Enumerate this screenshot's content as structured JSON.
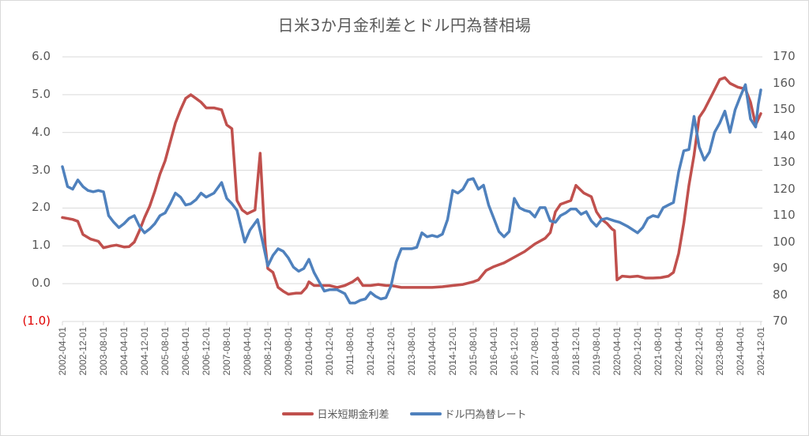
{
  "chart_data": {
    "type": "line",
    "title": "日米3か月金利差とドル円為替相場",
    "xlabel": "",
    "ylabel_left": "",
    "ylabel_right": "",
    "ylim_left": [
      -1.0,
      6.0
    ],
    "ylim_right": [
      70,
      170
    ],
    "grid": true,
    "legend_position": "bottom",
    "left_ticks": [
      "6.0",
      "5.0",
      "4.0",
      "3.0",
      "2.0",
      "1.0",
      "0.0",
      "(1.0)"
    ],
    "right_ticks": [
      "170",
      "160",
      "150",
      "140",
      "130",
      "120",
      "110",
      "100",
      "90",
      "80",
      "70"
    ],
    "x_tick_labels": [
      "2002-04-01",
      "2002-12-01",
      "2003-08-01",
      "2004-04-01",
      "2004-12-01",
      "2005-08-01",
      "2006-04-01",
      "2006-12-01",
      "2007-08-01",
      "2008-04-01",
      "2008-12-01",
      "2009-08-01",
      "2010-04-01",
      "2010-12-01",
      "2011-08-01",
      "2012-04-01",
      "2012-12-01",
      "2013-08-01",
      "2014-04-01",
      "2014-12-01",
      "2015-08-01",
      "2016-04-01",
      "2016-12-01",
      "2017-08-01",
      "2018-04-01",
      "2018-12-01",
      "2019-08-01",
      "2020-04-01",
      "2020-12-01",
      "2021-08-01",
      "2022-04-01",
      "2022-12-01",
      "2023-08-01",
      "2024-04-01",
      "2024-12-01"
    ],
    "series": [
      {
        "name": "日米短期金利差",
        "axis": "left",
        "color": "#c0504d",
        "points": [
          [
            "2002-04",
            1.75
          ],
          [
            "2002-08",
            1.7
          ],
          [
            "2002-10",
            1.65
          ],
          [
            "2002-12",
            1.3
          ],
          [
            "2003-03",
            1.18
          ],
          [
            "2003-06",
            1.12
          ],
          [
            "2003-08",
            0.95
          ],
          [
            "2003-11",
            1.0
          ],
          [
            "2004-01",
            1.02
          ],
          [
            "2004-04",
            0.97
          ],
          [
            "2004-06",
            0.98
          ],
          [
            "2004-08",
            1.1
          ],
          [
            "2004-10",
            1.4
          ],
          [
            "2004-12",
            1.75
          ],
          [
            "2005-02",
            2.05
          ],
          [
            "2005-04",
            2.45
          ],
          [
            "2005-06",
            2.9
          ],
          [
            "2005-08",
            3.25
          ],
          [
            "2005-10",
            3.75
          ],
          [
            "2005-12",
            4.25
          ],
          [
            "2006-02",
            4.6
          ],
          [
            "2006-04",
            4.9
          ],
          [
            "2006-06",
            5.0
          ],
          [
            "2006-08",
            4.9
          ],
          [
            "2006-10",
            4.8
          ],
          [
            "2006-12",
            4.65
          ],
          [
            "2007-03",
            4.65
          ],
          [
            "2007-06",
            4.6
          ],
          [
            "2007-08",
            4.2
          ],
          [
            "2007-10",
            4.1
          ],
          [
            "2007-12",
            2.2
          ],
          [
            "2008-02",
            1.95
          ],
          [
            "2008-04",
            1.85
          ],
          [
            "2008-07",
            1.95
          ],
          [
            "2008-09",
            3.45
          ],
          [
            "2008-11",
            1.0
          ],
          [
            "2008-12",
            0.4
          ],
          [
            "2009-02",
            0.3
          ],
          [
            "2009-04",
            -0.1
          ],
          [
            "2009-06",
            -0.2
          ],
          [
            "2009-08",
            -0.28
          ],
          [
            "2009-11",
            -0.25
          ],
          [
            "2010-01",
            -0.25
          ],
          [
            "2010-03",
            -0.1
          ],
          [
            "2010-04",
            0.05
          ],
          [
            "2010-06",
            -0.05
          ],
          [
            "2010-09",
            -0.05
          ],
          [
            "2010-12",
            -0.05
          ],
          [
            "2011-03",
            -0.1
          ],
          [
            "2011-06",
            -0.05
          ],
          [
            "2011-09",
            0.05
          ],
          [
            "2011-11",
            0.15
          ],
          [
            "2012-01",
            -0.05
          ],
          [
            "2012-04",
            -0.05
          ],
          [
            "2012-07",
            -0.02
          ],
          [
            "2012-10",
            -0.05
          ],
          [
            "2012-12",
            -0.05
          ],
          [
            "2013-04",
            -0.1
          ],
          [
            "2013-08",
            -0.1
          ],
          [
            "2013-12",
            -0.1
          ],
          [
            "2014-04",
            -0.1
          ],
          [
            "2014-08",
            -0.08
          ],
          [
            "2014-12",
            -0.05
          ],
          [
            "2015-04",
            -0.02
          ],
          [
            "2015-08",
            0.05
          ],
          [
            "2015-10",
            0.1
          ],
          [
            "2016-01",
            0.35
          ],
          [
            "2016-04",
            0.45
          ],
          [
            "2016-08",
            0.55
          ],
          [
            "2016-12",
            0.7
          ],
          [
            "2017-04",
            0.85
          ],
          [
            "2017-08",
            1.05
          ],
          [
            "2017-12",
            1.2
          ],
          [
            "2018-02",
            1.35
          ],
          [
            "2018-04",
            1.9
          ],
          [
            "2018-06",
            2.1
          ],
          [
            "2018-10",
            2.2
          ],
          [
            "2018-12",
            2.6
          ],
          [
            "2019-03",
            2.4
          ],
          [
            "2019-06",
            2.3
          ],
          [
            "2019-08",
            1.9
          ],
          [
            "2019-10",
            1.7
          ],
          [
            "2019-12",
            1.6
          ],
          [
            "2020-02",
            1.45
          ],
          [
            "2020-03",
            1.4
          ],
          [
            "2020-04",
            0.1
          ],
          [
            "2020-06",
            0.2
          ],
          [
            "2020-09",
            0.18
          ],
          [
            "2020-12",
            0.2
          ],
          [
            "2021-03",
            0.15
          ],
          [
            "2021-06",
            0.15
          ],
          [
            "2021-09",
            0.16
          ],
          [
            "2021-12",
            0.2
          ],
          [
            "2022-02",
            0.3
          ],
          [
            "2022-04",
            0.8
          ],
          [
            "2022-06",
            1.6
          ],
          [
            "2022-08",
            2.6
          ],
          [
            "2022-10",
            3.4
          ],
          [
            "2022-12",
            4.4
          ],
          [
            "2023-02",
            4.6
          ],
          [
            "2023-05",
            5.0
          ],
          [
            "2023-08",
            5.4
          ],
          [
            "2023-10",
            5.45
          ],
          [
            "2023-12",
            5.3
          ],
          [
            "2024-03",
            5.2
          ],
          [
            "2024-06",
            5.15
          ],
          [
            "2024-08",
            4.8
          ],
          [
            "2024-10",
            4.2
          ],
          [
            "2024-12",
            4.5
          ]
        ]
      },
      {
        "name": "ドル円為替レート",
        "axis": "right",
        "color": "#4f81bd",
        "points": [
          [
            "2002-04",
            128.5
          ],
          [
            "2002-06",
            121.0
          ],
          [
            "2002-08",
            120.0
          ],
          [
            "2002-10",
            123.5
          ],
          [
            "2002-12",
            121.0
          ],
          [
            "2003-02",
            119.5
          ],
          [
            "2003-04",
            119.0
          ],
          [
            "2003-06",
            119.5
          ],
          [
            "2003-08",
            119.0
          ],
          [
            "2003-10",
            110.0
          ],
          [
            "2003-12",
            107.5
          ],
          [
            "2004-02",
            105.5
          ],
          [
            "2004-04",
            107.0
          ],
          [
            "2004-06",
            109.0
          ],
          [
            "2004-08",
            110.0
          ],
          [
            "2004-10",
            106.0
          ],
          [
            "2004-12",
            103.5
          ],
          [
            "2005-02",
            105.0
          ],
          [
            "2005-04",
            107.0
          ],
          [
            "2005-06",
            110.0
          ],
          [
            "2005-08",
            111.0
          ],
          [
            "2005-10",
            114.5
          ],
          [
            "2005-12",
            118.5
          ],
          [
            "2006-02",
            117.0
          ],
          [
            "2006-04",
            114.0
          ],
          [
            "2006-06",
            114.5
          ],
          [
            "2006-08",
            116.0
          ],
          [
            "2006-10",
            118.5
          ],
          [
            "2006-12",
            117.0
          ],
          [
            "2007-03",
            118.5
          ],
          [
            "2007-06",
            122.5
          ],
          [
            "2007-08",
            116.5
          ],
          [
            "2007-10",
            114.5
          ],
          [
            "2007-12",
            112.0
          ],
          [
            "2008-03",
            100.0
          ],
          [
            "2008-05",
            104.5
          ],
          [
            "2008-08",
            108.5
          ],
          [
            "2008-10",
            100.0
          ],
          [
            "2008-12",
            91.0
          ],
          [
            "2009-02",
            95.0
          ],
          [
            "2009-04",
            97.5
          ],
          [
            "2009-06",
            96.5
          ],
          [
            "2009-08",
            94.0
          ],
          [
            "2009-10",
            90.5
          ],
          [
            "2009-12",
            89.0
          ],
          [
            "2010-02",
            90.0
          ],
          [
            "2010-04",
            93.5
          ],
          [
            "2010-06",
            88.5
          ],
          [
            "2010-08",
            85.0
          ],
          [
            "2010-10",
            81.5
          ],
          [
            "2010-12",
            82.0
          ],
          [
            "2011-03",
            82.0
          ],
          [
            "2011-06",
            80.5
          ],
          [
            "2011-08",
            77.0
          ],
          [
            "2011-10",
            77.0
          ],
          [
            "2011-12",
            78.0
          ],
          [
            "2012-02",
            78.5
          ],
          [
            "2012-04",
            81.0
          ],
          [
            "2012-06",
            79.5
          ],
          [
            "2012-08",
            78.5
          ],
          [
            "2012-10",
            79.0
          ],
          [
            "2012-12",
            83.5
          ],
          [
            "2013-02",
            92.5
          ],
          [
            "2013-04",
            97.5
          ],
          [
            "2013-06",
            97.5
          ],
          [
            "2013-08",
            97.5
          ],
          [
            "2013-10",
            98.0
          ],
          [
            "2013-12",
            103.5
          ],
          [
            "2014-02",
            102.0
          ],
          [
            "2014-04",
            102.5
          ],
          [
            "2014-06",
            102.0
          ],
          [
            "2014-08",
            103.0
          ],
          [
            "2014-10",
            108.5
          ],
          [
            "2014-12",
            119.5
          ],
          [
            "2015-02",
            118.5
          ],
          [
            "2015-04",
            120.0
          ],
          [
            "2015-06",
            123.5
          ],
          [
            "2015-08",
            124.0
          ],
          [
            "2015-10",
            120.0
          ],
          [
            "2015-12",
            121.5
          ],
          [
            "2016-02",
            114.0
          ],
          [
            "2016-04",
            109.0
          ],
          [
            "2016-06",
            104.0
          ],
          [
            "2016-08",
            102.0
          ],
          [
            "2016-10",
            104.0
          ],
          [
            "2016-12",
            116.5
          ],
          [
            "2017-02",
            113.0
          ],
          [
            "2017-04",
            112.0
          ],
          [
            "2017-06",
            111.5
          ],
          [
            "2017-08",
            109.5
          ],
          [
            "2017-10",
            113.0
          ],
          [
            "2017-12",
            113.0
          ],
          [
            "2018-02",
            108.0
          ],
          [
            "2018-04",
            107.5
          ],
          [
            "2018-06",
            110.0
          ],
          [
            "2018-08",
            111.0
          ],
          [
            "2018-10",
            112.5
          ],
          [
            "2018-12",
            112.5
          ],
          [
            "2019-02",
            110.5
          ],
          [
            "2019-04",
            111.5
          ],
          [
            "2019-06",
            108.0
          ],
          [
            "2019-08",
            106.0
          ],
          [
            "2019-10",
            108.5
          ],
          [
            "2019-12",
            109.0
          ],
          [
            "2020-03",
            108.0
          ],
          [
            "2020-05",
            107.5
          ],
          [
            "2020-08",
            106.0
          ],
          [
            "2020-12",
            103.5
          ],
          [
            "2021-02",
            105.5
          ],
          [
            "2021-04",
            109.0
          ],
          [
            "2021-06",
            110.0
          ],
          [
            "2021-08",
            109.5
          ],
          [
            "2021-10",
            113.0
          ],
          [
            "2021-12",
            114.0
          ],
          [
            "2022-02",
            115.0
          ],
          [
            "2022-04",
            126.5
          ],
          [
            "2022-06",
            134.5
          ],
          [
            "2022-08",
            135.0
          ],
          [
            "2022-10",
            147.5
          ],
          [
            "2022-12",
            136.0
          ],
          [
            "2023-02",
            131.0
          ],
          [
            "2023-04",
            134.0
          ],
          [
            "2023-06",
            141.5
          ],
          [
            "2023-08",
            145.0
          ],
          [
            "2023-10",
            149.5
          ],
          [
            "2023-12",
            141.5
          ],
          [
            "2024-02",
            150.0
          ],
          [
            "2024-04",
            155.0
          ],
          [
            "2024-06",
            159.5
          ],
          [
            "2024-08",
            146.5
          ],
          [
            "2024-10",
            143.5
          ],
          [
            "2024-11",
            152.0
          ],
          [
            "2024-12",
            157.5
          ]
        ]
      }
    ]
  },
  "legend": {
    "items": [
      {
        "label": "日米短期金利差",
        "color": "#c0504d"
      },
      {
        "label": "ドル円為替レート",
        "color": "#4f81bd"
      }
    ]
  }
}
